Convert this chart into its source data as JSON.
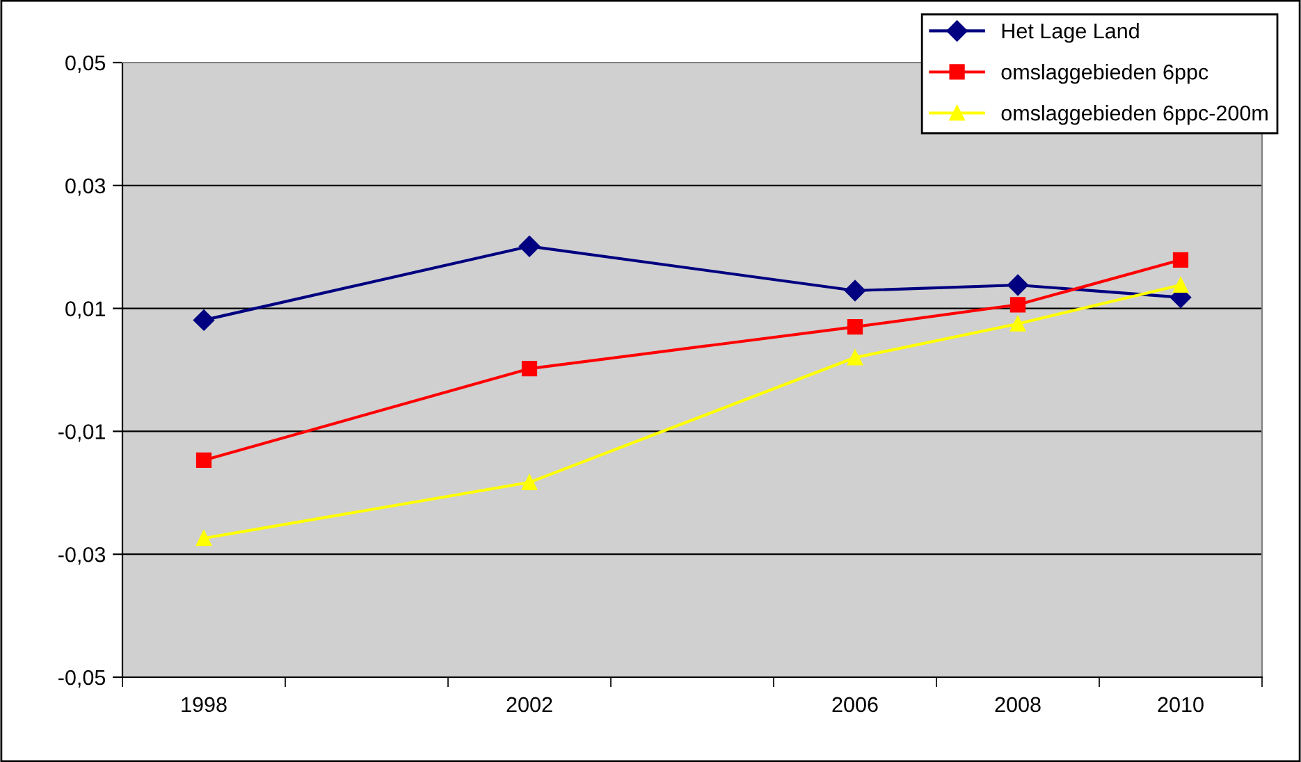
{
  "chart_data": {
    "type": "line",
    "x": [
      1998,
      2002,
      2006,
      2008,
      2010
    ],
    "series": [
      {
        "name": "Het Lage Land",
        "color": "#000080",
        "marker": "diamond",
        "values": [
          0.0081,
          0.0201,
          0.0129,
          0.0138,
          0.0118
        ]
      },
      {
        "name": "omslaggebieden 6ppc",
        "color": "#ff0000",
        "marker": "square",
        "values": [
          -0.0147,
          0.0002,
          0.007,
          0.0106,
          0.0179
        ]
      },
      {
        "name": "omslaggebieden 6ppc-200m",
        "color": "#ffff00",
        "marker": "triangle",
        "values": [
          -0.0274,
          -0.0183,
          0.002,
          0.0075,
          0.0138
        ]
      }
    ],
    "xlim": [
      1997,
      2011
    ],
    "xticks": [
      {
        "value": 1997,
        "label": null
      },
      1998,
      {
        "value": 1999,
        "label": null
      },
      {
        "value": 2001,
        "label": null
      },
      2002,
      {
        "value": 2003,
        "label": null
      },
      {
        "value": 2005,
        "label": null
      },
      2006,
      {
        "value": 2007,
        "label": null
      },
      2008,
      {
        "value": 2009,
        "label": null
      },
      2010,
      {
        "value": 2011,
        "label": null
      }
    ],
    "ylim": [
      -0.05,
      0.05
    ],
    "yticks": [
      {
        "value": -0.05,
        "label": "-0,05"
      },
      {
        "value": -0.03,
        "label": "-0,03"
      },
      {
        "value": -0.01,
        "label": "-0,01"
      },
      {
        "value": 0.01,
        "label": "0,01"
      },
      {
        "value": 0.03,
        "label": "0,03"
      },
      {
        "value": 0.05,
        "label": "0,05"
      }
    ],
    "grid": "y",
    "legend": "top right",
    "line_style": "solid"
  }
}
